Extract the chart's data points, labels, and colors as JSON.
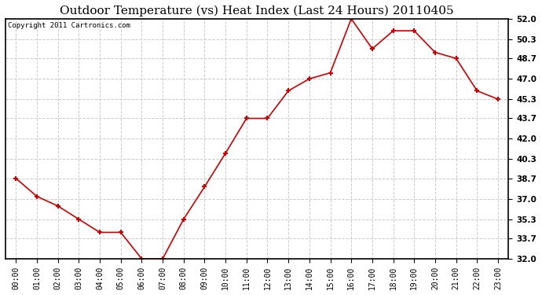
{
  "title": "Outdoor Temperature (vs) Heat Index (Last 24 Hours) 20110405",
  "copyright_text": "Copyright 2011 Cartronics.com",
  "x_labels": [
    "00:00",
    "01:00",
    "02:00",
    "03:00",
    "04:00",
    "05:00",
    "06:00",
    "07:00",
    "08:00",
    "09:00",
    "10:00",
    "11:00",
    "12:00",
    "13:00",
    "14:00",
    "15:00",
    "16:00",
    "17:00",
    "18:00",
    "19:00",
    "20:00",
    "21:00",
    "22:00",
    "23:00"
  ],
  "y_values": [
    38.7,
    37.2,
    36.4,
    35.3,
    34.2,
    34.2,
    32.0,
    32.0,
    35.3,
    38.0,
    40.8,
    43.7,
    43.7,
    46.0,
    47.0,
    47.5,
    52.0,
    49.5,
    51.0,
    51.0,
    49.2,
    48.7,
    46.0,
    45.3
  ],
  "line_color": "#cc0000",
  "marker": "+",
  "marker_size": 5,
  "marker_edge_width": 1.5,
  "line_width": 1.2,
  "bg_color": "#ffffff",
  "plot_bg_color": "#ffffff",
  "grid_color": "#cccccc",
  "grid_style": "--",
  "grid_linewidth": 0.7,
  "y_min": 32.0,
  "y_max": 52.0,
  "y_ticks": [
    32.0,
    33.7,
    35.3,
    37.0,
    38.7,
    40.3,
    42.0,
    43.7,
    45.3,
    47.0,
    48.7,
    50.3,
    52.0
  ],
  "title_fontsize": 11,
  "tick_fontsize": 7.5,
  "copyright_fontsize": 6.5,
  "x_tick_fontsize": 7
}
